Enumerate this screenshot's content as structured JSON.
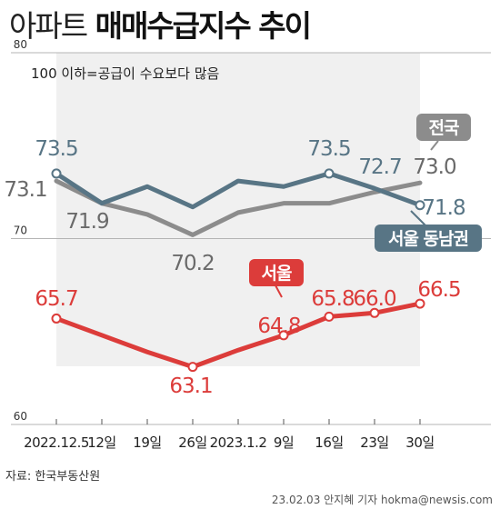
{
  "title": {
    "light": "아파트",
    "bold": "매매수급지수 추이"
  },
  "note": "100 이하=공급이 수요보다 많음",
  "source": "자료: 한국부동산원",
  "credit": "23.02.03 안지혜 기자 hokma@newsis.com",
  "colors": {
    "national": "#8c8c8c",
    "seoul_se": "#587585",
    "seoul": "#dc3c3a"
  },
  "chart_data": {
    "type": "line",
    "categories": [
      "2022.12.5",
      "12일",
      "19일",
      "26일",
      "2023.1.2",
      "9일",
      "16일",
      "23일",
      "30일"
    ],
    "ylim": [
      60,
      80
    ],
    "yticks": [
      60,
      70,
      80
    ],
    "series": [
      {
        "name": "전국",
        "values": [
          73.1,
          71.9,
          71.3,
          70.2,
          71.4,
          71.9,
          71.9,
          72.5,
          73.0
        ]
      },
      {
        "name": "서울 동남권",
        "values": [
          73.5,
          71.9,
          72.8,
          71.7,
          73.1,
          72.8,
          73.5,
          72.7,
          71.8
        ]
      },
      {
        "name": "서울",
        "values": [
          65.7,
          64.8,
          63.9,
          63.1,
          64.0,
          64.8,
          65.8,
          66.0,
          66.5
        ]
      }
    ],
    "data_labels": [
      {
        "series": "서울 동남권",
        "index": 0,
        "text": "73.5"
      },
      {
        "series": "전국",
        "index": 0,
        "text": "73.1"
      },
      {
        "series": "전국",
        "index": 1,
        "text": "71.9"
      },
      {
        "series": "전국",
        "index": 3,
        "text": "70.2"
      },
      {
        "series": "서울 동남권",
        "index": 6,
        "text": "73.5"
      },
      {
        "series": "서울 동남권",
        "index": 7,
        "text": "72.7"
      },
      {
        "series": "전국",
        "index": 8,
        "text": "73.0"
      },
      {
        "series": "서울 동남권",
        "index": 8,
        "text": "71.8"
      },
      {
        "series": "서울",
        "index": 0,
        "text": "65.7"
      },
      {
        "series": "서울",
        "index": 3,
        "text": "63.1"
      },
      {
        "series": "서울",
        "index": 5,
        "text": "64.8"
      },
      {
        "series": "서울",
        "index": 6,
        "text": "65.8"
      },
      {
        "series": "서울",
        "index": 7,
        "text": "66.0"
      },
      {
        "series": "서울",
        "index": 8,
        "text": "66.5"
      }
    ]
  }
}
